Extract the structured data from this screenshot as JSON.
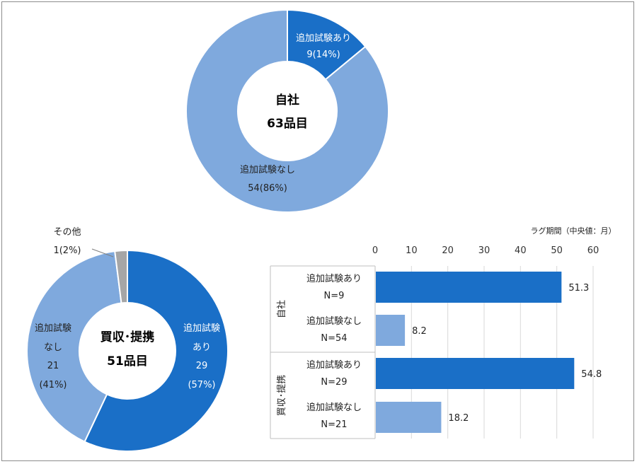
{
  "colors": {
    "dark_blue": "#1a6fc7",
    "light_blue": "#7fa9dd",
    "gray": "#a6a6a6",
    "grid": "#d9d9d9",
    "border": "#8c8c8c"
  },
  "chart_data": [
    {
      "type": "pie",
      "variant": "donut",
      "center_title": "自社",
      "center_subtitle": "63品目",
      "slices": [
        {
          "label": "追加試験あり",
          "value_label": "9(14%)",
          "value": 9,
          "percent": 14,
          "color": "#1a6fc7"
        },
        {
          "label": "追加試験なし",
          "value_label": "54(86%)",
          "value": 54,
          "percent": 86,
          "color": "#7fa9dd"
        }
      ]
    },
    {
      "type": "pie",
      "variant": "donut",
      "center_title": "買収･提携",
      "center_subtitle": "51品目",
      "slices": [
        {
          "label": "追加試験",
          "label2": "あり",
          "value_label": "29",
          "value_label2": "(57%)",
          "value": 29,
          "percent": 57,
          "color": "#1a6fc7"
        },
        {
          "label": "追加試験",
          "label2": "なし",
          "value_label": "21",
          "value_label2": "(41%)",
          "value": 21,
          "percent": 41,
          "color": "#7fa9dd"
        },
        {
          "label": "その他",
          "value_label": "1(2%)",
          "value": 1,
          "percent": 2,
          "color": "#a6a6a6"
        }
      ]
    },
    {
      "type": "bar",
      "orientation": "horizontal",
      "axis_title": "ラグ期間（中央値：月）",
      "xlim": [
        0,
        60
      ],
      "ticks": [
        0,
        10,
        20,
        30,
        40,
        50,
        60
      ],
      "groups": [
        "自社",
        "買収･提携"
      ],
      "bars": [
        {
          "group": "自社",
          "label": "追加試験あり",
          "n": "N=9",
          "value": 51.3,
          "value_label": "51.3",
          "color": "#1a6fc7"
        },
        {
          "group": "自社",
          "label": "追加試験なし",
          "n": "N=54",
          "value": 8.2,
          "value_label": "8.2",
          "color": "#7fa9dd"
        },
        {
          "group": "買収･提携",
          "label": "追加試験あり",
          "n": "N=29",
          "value": 54.8,
          "value_label": "54.8",
          "color": "#1a6fc7"
        },
        {
          "group": "買収･提携",
          "label": "追加試験なし",
          "n": "N=21",
          "value": 18.2,
          "value_label": "18.2",
          "color": "#7fa9dd"
        }
      ]
    }
  ]
}
